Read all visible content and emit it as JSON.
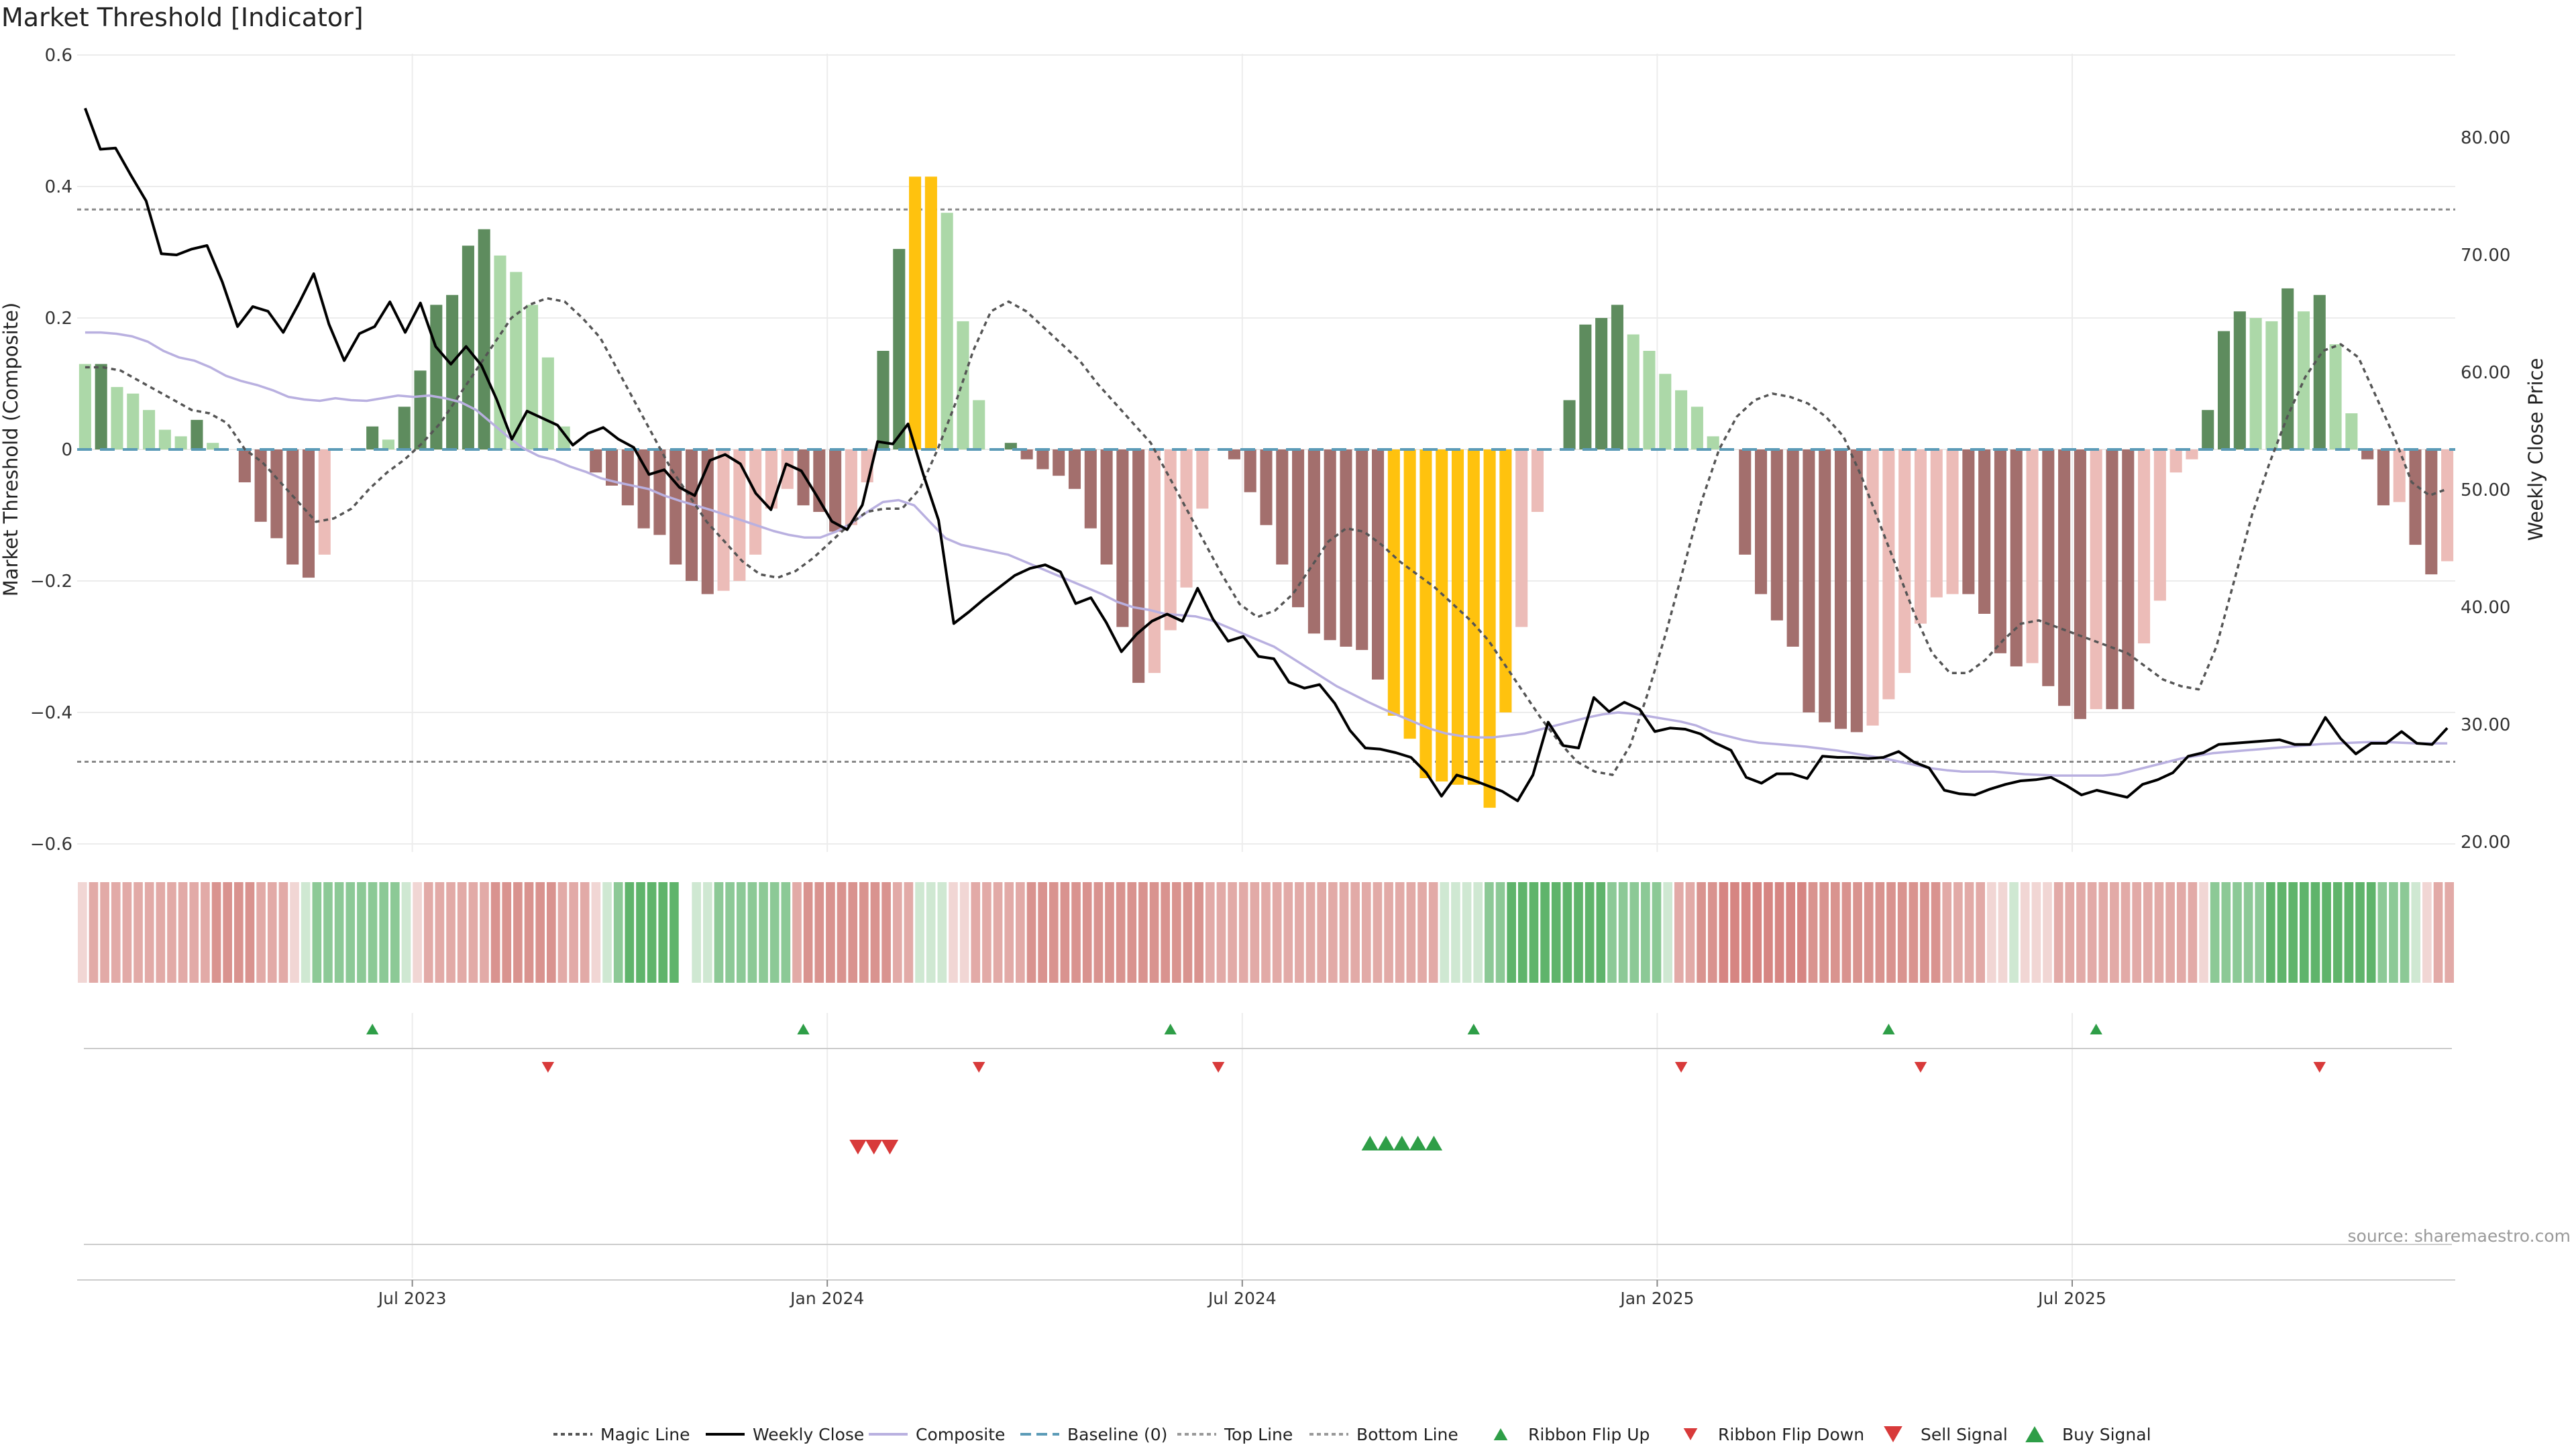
{
  "title": "Market Threshold [Indicator]",
  "source": "source: sharemaestro.com",
  "colors": {
    "bar_pos_dark": "#5e8c5e",
    "bar_pos_light": "#acd8a8",
    "bar_neg_dark": "#a36f6d",
    "bar_neg_light": "#ecbcb8",
    "bar_extreme": "#ffc20e",
    "close_line": "#000000",
    "composite_line": "#b9b0e0",
    "magic_line": "#555555",
    "baseline": "#5b9bb7",
    "threshold_line": "#888888",
    "ribbon_green_dark": "#4ea85e",
    "ribbon_red_dark": "#d68582",
    "signal_green": "#2e9e47",
    "signal_red": "#d83a3a",
    "grid": "#ececec"
  },
  "chart_data": {
    "type": "bar",
    "left_axis": {
      "label": "Market Threshold (Composite)",
      "ylim": [
        -0.6,
        0.6
      ],
      "ticks": [
        0.6,
        0.4,
        0.2,
        0,
        -0.2,
        -0.4,
        -0.6
      ],
      "tick_labels": [
        "0.6",
        "0.4",
        "0.2",
        "0",
        "−0.2",
        "−0.4",
        "−0.6"
      ]
    },
    "right_axis": {
      "label": "Weekly Close Price",
      "ylim": [
        20,
        85
      ],
      "ticks": [
        80,
        70,
        60,
        50,
        40,
        30,
        20
      ],
      "tick_labels": [
        "80.00",
        "70.00",
        "60.00",
        "50.00",
        "40.00",
        "30.00",
        "20.00"
      ]
    },
    "x_axis": {
      "tick_labels": [
        "Jul 2023",
        "Jan 2024",
        "Jul 2024",
        "Jan 2025",
        "Jul 2025"
      ],
      "tick_index": [
        21,
        47,
        73,
        99,
        125
      ]
    },
    "top_line": 0.365,
    "bottom_line": -0.475,
    "baseline": 0,
    "series": [
      {
        "name": "Composite bars",
        "values": [
          0.13,
          0.13,
          0.095,
          0.085,
          0.06,
          0.03,
          0.02,
          0.045,
          0.01,
          0,
          -0.05,
          -0.11,
          -0.135,
          -0.175,
          -0.195,
          -0.16,
          0,
          0,
          0.035,
          0.015,
          0.065,
          0.12,
          0.22,
          0.235,
          0.31,
          0.335,
          0.295,
          0.27,
          0.22,
          0.14,
          0.035,
          0,
          -0.035,
          -0.055,
          -0.085,
          -0.12,
          -0.13,
          -0.175,
          -0.2,
          -0.22,
          -0.215,
          -0.2,
          -0.16,
          -0.09,
          -0.06,
          -0.085,
          -0.095,
          -0.125,
          -0.115,
          -0.05,
          0.15,
          0.305,
          0.415,
          0.415,
          0.36,
          0.195,
          0.075,
          0,
          0.01,
          -0.015,
          -0.03,
          -0.04,
          -0.06,
          -0.12,
          -0.175,
          -0.27,
          -0.355,
          -0.34,
          -0.275,
          -0.21,
          -0.09,
          0,
          -0.015,
          -0.065,
          -0.115,
          -0.175,
          -0.24,
          -0.28,
          -0.29,
          -0.3,
          -0.305,
          -0.35,
          -0.405,
          -0.44,
          -0.5,
          -0.505,
          -0.51,
          -0.51,
          -0.545,
          -0.4,
          -0.27,
          -0.095,
          0,
          0.075,
          0.19,
          0.2,
          0.22,
          0.175,
          0.15,
          0.115,
          0.09,
          0.065,
          0.02,
          0,
          -0.16,
          -0.22,
          -0.26,
          -0.3,
          -0.4,
          -0.415,
          -0.425,
          -0.43,
          -0.42,
          -0.38,
          -0.34,
          -0.265,
          -0.225,
          -0.22,
          -0.22,
          -0.25,
          -0.31,
          -0.33,
          -0.325,
          -0.36,
          -0.39,
          -0.41,
          -0.395,
          -0.395,
          -0.395,
          -0.295,
          -0.23,
          -0.035,
          -0.015,
          0.06,
          0.18,
          0.21,
          0.2,
          0.195,
          0.245,
          0.21,
          0.235,
          0.16,
          0.055,
          -0.015,
          -0.085,
          -0.08,
          -0.145,
          -0.19,
          -0.17
        ]
      },
      {
        "name": "Weekly Close",
        "values": [
          82.5,
          79.0,
          79.1,
          76.8,
          74.6,
          70.1,
          70.0,
          70.5,
          70.8,
          67.7,
          63.9,
          65.6,
          65.2,
          63.4,
          65.8,
          68.4,
          64.1,
          61.0,
          63.3,
          63.9,
          66.0,
          63.4,
          65.9,
          62.2,
          60.7,
          62.2,
          60.6,
          57.7,
          54.3,
          56.7,
          56.1,
          55.5,
          53.8,
          54.8,
          55.3,
          54.3,
          53.6,
          51.3,
          51.7,
          50.2,
          49.5,
          52.5,
          53.0,
          52.2,
          49.7,
          48.3,
          52.2,
          51.6,
          49.5,
          47.3,
          46.6,
          48.7,
          54.1,
          53.9,
          55.6,
          51.3,
          47.4,
          38.6,
          39.6,
          40.7,
          41.7,
          42.7,
          43.3,
          43.6,
          43.0,
          40.3,
          40.8,
          38.7,
          36.2,
          37.7,
          38.8,
          39.4,
          38.8,
          41.6,
          39.0,
          37.1,
          37.5,
          35.8,
          35.6,
          33.6,
          33.1,
          33.4,
          31.8,
          29.5,
          28.0,
          27.9,
          27.6,
          27.2,
          25.9,
          23.9,
          25.7,
          25.3,
          24.8,
          24.3,
          23.5,
          25.7,
          30.2,
          28.2,
          28.0,
          32.3,
          31.1,
          31.9,
          31.3,
          29.4,
          29.7,
          29.6,
          29.2,
          28.4,
          27.8,
          25.5,
          25.0,
          25.8,
          25.8,
          25.4,
          27.3,
          27.2,
          27.2,
          27.1,
          27.2,
          27.7,
          26.8,
          26.3,
          24.4,
          24.1,
          24.0,
          24.5,
          24.9,
          25.2,
          25.3,
          25.5,
          24.8,
          24.0,
          24.4,
          24.1,
          23.8,
          24.9,
          25.3,
          25.9,
          27.3,
          27.6,
          28.3,
          28.4,
          28.5,
          28.6,
          28.7,
          28.3,
          28.3,
          30.6,
          28.8,
          27.5,
          28.4,
          28.4,
          29.4,
          28.4,
          28.3,
          29.7
        ]
      },
      {
        "name": "Composite",
        "values": [
          0.178,
          0.178,
          0.176,
          0.172,
          0.164,
          0.15,
          0.14,
          0.135,
          0.125,
          0.112,
          0.104,
          0.098,
          0.09,
          0.08,
          0.076,
          0.074,
          0.078,
          0.075,
          0.074,
          0.078,
          0.082,
          0.08,
          0.082,
          0.078,
          0.072,
          0.06,
          0.04,
          0.02,
          0.002,
          -0.01,
          -0.016,
          -0.026,
          -0.034,
          -0.044,
          -0.05,
          -0.055,
          -0.06,
          -0.07,
          -0.078,
          -0.085,
          -0.092,
          -0.1,
          -0.108,
          -0.116,
          -0.124,
          -0.13,
          -0.134,
          -0.134,
          -0.125,
          -0.112,
          -0.095,
          -0.08,
          -0.077,
          -0.085,
          -0.11,
          -0.135,
          -0.145,
          -0.15,
          -0.155,
          -0.16,
          -0.17,
          -0.18,
          -0.19,
          -0.2,
          -0.21,
          -0.22,
          -0.232,
          -0.24,
          -0.244,
          -0.25,
          -0.252,
          -0.254,
          -0.26,
          -0.27,
          -0.28,
          -0.29,
          -0.3,
          -0.315,
          -0.33,
          -0.345,
          -0.36,
          -0.372,
          -0.384,
          -0.395,
          -0.405,
          -0.415,
          -0.425,
          -0.432,
          -0.436,
          -0.438,
          -0.438,
          -0.435,
          -0.432,
          -0.426,
          -0.42,
          -0.414,
          -0.408,
          -0.403,
          -0.4,
          -0.402,
          -0.406,
          -0.41,
          -0.414,
          -0.42,
          -0.43,
          -0.436,
          -0.442,
          -0.446,
          -0.448,
          -0.45,
          -0.452,
          -0.455,
          -0.458,
          -0.462,
          -0.466,
          -0.47,
          -0.475,
          -0.48,
          -0.485,
          -0.488,
          -0.49,
          -0.49,
          -0.49,
          -0.492,
          -0.494,
          -0.495,
          -0.496,
          -0.496,
          -0.496,
          -0.496,
          -0.494,
          -0.488,
          -0.482,
          -0.476,
          -0.47,
          -0.466,
          -0.462,
          -0.46,
          -0.458,
          -0.456,
          -0.454,
          -0.452,
          -0.45,
          -0.448,
          -0.447,
          -0.446,
          -0.445,
          -0.445,
          -0.446,
          -0.447,
          -0.447,
          -0.447
        ]
      },
      {
        "name": "Magic Line",
        "values": [
          0.125,
          0.125,
          0.12,
          0.105,
          0.09,
          0.075,
          0.06,
          0.055,
          0.04,
          0.0,
          -0.02,
          -0.05,
          -0.08,
          -0.11,
          -0.105,
          -0.09,
          -0.06,
          -0.035,
          -0.015,
          0.01,
          0.04,
          0.08,
          0.12,
          0.16,
          0.2,
          0.22,
          0.23,
          0.225,
          0.2,
          0.17,
          0.12,
          0.07,
          0.02,
          -0.03,
          -0.07,
          -0.11,
          -0.14,
          -0.17,
          -0.19,
          -0.195,
          -0.185,
          -0.165,
          -0.14,
          -0.115,
          -0.095,
          -0.09,
          -0.09,
          -0.06,
          0.0,
          0.07,
          0.15,
          0.21,
          0.225,
          0.21,
          0.185,
          0.16,
          0.135,
          0.1,
          0.07,
          0.04,
          0.01,
          -0.04,
          -0.09,
          -0.14,
          -0.19,
          -0.235,
          -0.255,
          -0.245,
          -0.22,
          -0.18,
          -0.14,
          -0.12,
          -0.125,
          -0.145,
          -0.17,
          -0.19,
          -0.21,
          -0.235,
          -0.26,
          -0.29,
          -0.33,
          -0.37,
          -0.41,
          -0.445,
          -0.475,
          -0.49,
          -0.495,
          -0.45,
          -0.37,
          -0.28,
          -0.18,
          -0.08,
          0.0,
          0.05,
          0.075,
          0.085,
          0.08,
          0.07,
          0.05,
          0.02,
          -0.04,
          -0.11,
          -0.18,
          -0.25,
          -0.31,
          -0.34,
          -0.34,
          -0.32,
          -0.29,
          -0.265,
          -0.26,
          -0.27,
          -0.28,
          -0.29,
          -0.3,
          -0.31,
          -0.33,
          -0.35,
          -0.36,
          -0.365,
          -0.3,
          -0.2,
          -0.1,
          -0.02,
          0.05,
          0.11,
          0.15,
          0.16,
          0.14,
          0.08,
          0.02,
          -0.05,
          -0.07,
          -0.06
        ]
      }
    ],
    "ribbon": {
      "label": "Ribbon",
      "states": [
        -1,
        -2,
        -2,
        -2,
        -2,
        -2,
        -2,
        -2,
        -2,
        -2,
        -2,
        -2,
        -3,
        -3,
        -3,
        -3,
        -2,
        -2,
        -2,
        -1,
        1,
        2,
        2,
        2,
        2,
        2,
        2,
        2,
        2,
        1,
        -1,
        -2,
        -2,
        -2,
        -2,
        -2,
        -2,
        -3,
        -3,
        -3,
        -3,
        -3,
        -3,
        -2,
        -2,
        -2,
        -1,
        1,
        2,
        3,
        3,
        3,
        3,
        3,
        0,
        1,
        1,
        2,
        2,
        2,
        2,
        2,
        2,
        2,
        -2,
        -3,
        -3,
        -3,
        -3,
        -3,
        -3,
        -3,
        -3,
        -2,
        -2,
        1,
        1,
        1,
        -1,
        -1,
        -2,
        -2,
        -2,
        -2,
        -2,
        -3,
        -3,
        -3,
        -3,
        -3,
        -3,
        -3,
        -3,
        -3,
        -3,
        -3,
        -3,
        -3,
        -3,
        -3,
        -3,
        -2,
        -2,
        -2,
        -2,
        -2,
        -2,
        -2,
        -2,
        -2,
        -2,
        -2,
        -2,
        -2,
        -2,
        -2,
        -2,
        -2,
        -2,
        -2,
        -2,
        -2,
        1,
        1,
        1,
        1,
        2,
        2,
        3,
        3,
        3,
        3,
        3,
        3,
        3,
        3,
        3,
        2,
        2,
        2,
        2,
        2,
        1,
        -2,
        -2,
        -3,
        -3,
        -4,
        -4,
        -4,
        -4,
        -4,
        -4,
        -4,
        -4,
        -3,
        -3,
        -3,
        -3,
        -3,
        -3,
        -3,
        -3,
        -3,
        -3,
        -3,
        -3,
        -2,
        -2,
        -2,
        -2,
        -1,
        -1,
        1,
        -1,
        -1,
        -1,
        -2,
        -2,
        -2,
        -2,
        -2,
        -2,
        -2,
        -2,
        -2,
        -2,
        -2,
        -2,
        -2,
        -1,
        2,
        2,
        2,
        2,
        2,
        3,
        3,
        3,
        3,
        3,
        3,
        3,
        3,
        3,
        3,
        2,
        2,
        2,
        1,
        -1,
        -2,
        -2
      ]
    },
    "signals": {
      "ribbon_flip_up": [
        18,
        45,
        68,
        87,
        113,
        126
      ],
      "ribbon_flip_down": [
        29,
        56,
        71,
        100,
        115,
        140
      ],
      "sell_signal": [
        48,
        49,
        50
      ],
      "buy_signal": [
        80,
        81,
        82,
        83,
        84
      ]
    },
    "legend": {
      "position": "bottom",
      "items": [
        {
          "name": "Magic Line",
          "kind": "dotted",
          "color": "#555555"
        },
        {
          "name": "Weekly Close",
          "kind": "solid",
          "color": "#000000"
        },
        {
          "name": "Composite",
          "kind": "solid",
          "color": "#b9b0e0"
        },
        {
          "name": "Baseline (0)",
          "kind": "dashed",
          "color": "#5b9bb7"
        },
        {
          "name": "Top Line",
          "kind": "dotted",
          "color": "#999999"
        },
        {
          "name": "Bottom Line",
          "kind": "dotted",
          "color": "#999999"
        },
        {
          "name": "Ribbon Flip Up",
          "kind": "tri-up-small",
          "color": "#2e9e47"
        },
        {
          "name": "Ribbon Flip Down",
          "kind": "tri-down-small",
          "color": "#d83a3a"
        },
        {
          "name": "Sell Signal",
          "kind": "tri-down",
          "color": "#d83a3a"
        },
        {
          "name": "Buy Signal",
          "kind": "tri-up",
          "color": "#2e9e47"
        }
      ]
    }
  }
}
